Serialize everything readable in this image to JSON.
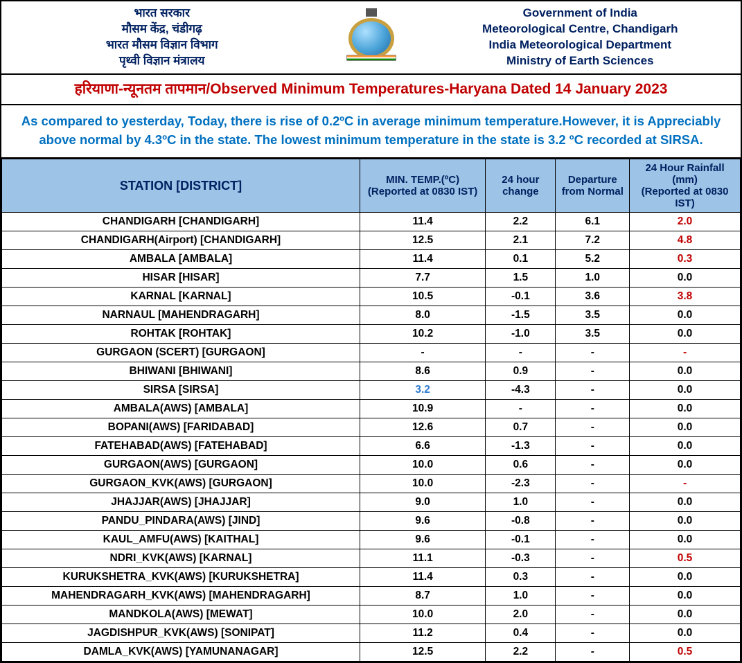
{
  "header": {
    "left": {
      "l1": "भारत सरकार",
      "l2": "मौसम केंद्र, चंडीगढ़",
      "l3": "भारत मौसम विज्ञान विभाग",
      "l4": "पृथ्वी विज्ञान मंत्रालय"
    },
    "right": {
      "l1": "Government of India",
      "l2": "Meteorological Centre, Chandigarh",
      "l3": "India Meteorological Department",
      "l4": "Ministry of Earth Sciences"
    }
  },
  "title": {
    "hi": "हरियाणा-न्यूनतम तापमान",
    "sep": "/",
    "en": "Observed Minimum Temperatures-Haryana Dated 14 January 2023"
  },
  "summary": "As compared to yesterday, Today, there is rise of 0.2ºC in average minimum temperature.However, it is Appreciably above normal by 4.3ºC in the state. The lowest minimum temperature in the state is 3.2 ºC recorded at SIRSA.",
  "columns": {
    "station": "STATION  [DISTRICT]",
    "mintemp_l1": "MIN. TEMP.(ºC)",
    "mintemp_l2": "(Reported at 0830 IST)",
    "change_l1": "24 hour",
    "change_l2": "change",
    "dep_l1": "Departure",
    "dep_l2": "from Normal",
    "rain_l1": "24 Hour Rainfall (mm)",
    "rain_l2": "(Reported at 0830 IST)"
  },
  "lowest_station_index": 9,
  "rows": [
    {
      "station": "CHANDIGARH  [CHANDIGARH]",
      "mintemp": "11.4",
      "change": "2.2",
      "dep": "6.1",
      "rain": "2.0",
      "rain_red": true
    },
    {
      "station": "CHANDIGARH(Airport)  [CHANDIGARH]",
      "mintemp": "12.5",
      "change": "2.1",
      "dep": "7.2",
      "rain": "4.8",
      "rain_red": true
    },
    {
      "station": "AMBALA  [AMBALA]",
      "mintemp": "11.4",
      "change": "0.1",
      "dep": "5.2",
      "rain": "0.3",
      "rain_red": true
    },
    {
      "station": "HISAR  [HISAR]",
      "mintemp": "7.7",
      "change": "1.5",
      "dep": "1.0",
      "rain": "0.0"
    },
    {
      "station": "KARNAL  [KARNAL]",
      "mintemp": "10.5",
      "change": "-0.1",
      "dep": "3.6",
      "rain": "3.8",
      "rain_red": true
    },
    {
      "station": "NARNAUL  [MAHENDRAGARH]",
      "mintemp": "8.0",
      "change": "-1.5",
      "dep": "3.5",
      "rain": "0.0"
    },
    {
      "station": "ROHTAK  [ROHTAK]",
      "mintemp": "10.2",
      "change": "-1.0",
      "dep": "3.5",
      "rain": "0.0"
    },
    {
      "station": "GURGAON (SCERT)  [GURGAON]",
      "mintemp": "-",
      "change": "-",
      "dep": "-",
      "rain": "-",
      "rain_red": true
    },
    {
      "station": "BHIWANI  [BHIWANI]",
      "mintemp": "8.6",
      "change": "0.9",
      "dep": "-",
      "rain": "0.0"
    },
    {
      "station": "SIRSA  [SIRSA]",
      "mintemp": "3.2",
      "change": "-4.3",
      "dep": "-",
      "rain": "0.0"
    },
    {
      "station": "AMBALA(AWS)  [AMBALA]",
      "mintemp": "10.9",
      "change": "-",
      "dep": "-",
      "rain": "0.0"
    },
    {
      "station": "BOPANI(AWS)  [FARIDABAD]",
      "mintemp": "12.6",
      "change": "0.7",
      "dep": "-",
      "rain": "0.0"
    },
    {
      "station": "FATEHABAD(AWS)  [FATEHABAD]",
      "mintemp": "6.6",
      "change": "-1.3",
      "dep": "-",
      "rain": "0.0"
    },
    {
      "station": "GURGAON(AWS)  [GURGAON]",
      "mintemp": "10.0",
      "change": "0.6",
      "dep": "-",
      "rain": "0.0"
    },
    {
      "station": "GURGAON_KVK(AWS)  [GURGAON]",
      "mintemp": "10.0",
      "change": "-2.3",
      "dep": "-",
      "rain": "-",
      "rain_red": true
    },
    {
      "station": "JHAJJAR(AWS)  [JHAJJAR]",
      "mintemp": "9.0",
      "change": "1.0",
      "dep": "-",
      "rain": "0.0"
    },
    {
      "station": "PANDU_PINDARA(AWS)  [JIND]",
      "mintemp": "9.6",
      "change": "-0.8",
      "dep": "-",
      "rain": "0.0"
    },
    {
      "station": "KAUL_AMFU(AWS)  [KAITHAL]",
      "mintemp": "9.6",
      "change": "-0.1",
      "dep": "-",
      "rain": "0.0"
    },
    {
      "station": "NDRI_KVK(AWS)  [KARNAL]",
      "mintemp": "11.1",
      "change": "-0.3",
      "dep": "-",
      "rain": "0.5",
      "rain_red": true
    },
    {
      "station": "KURUKSHETRA_KVK(AWS)  [KURUKSHETRA]",
      "mintemp": "11.4",
      "change": "0.3",
      "dep": "-",
      "rain": "0.0"
    },
    {
      "station": "MAHENDRAGARH_KVK(AWS)  [MAHENDRAGARH]",
      "mintemp": "8.7",
      "change": "1.0",
      "dep": "-",
      "rain": "0.0"
    },
    {
      "station": "MANDKOLA(AWS)  [MEWAT]",
      "mintemp": "10.0",
      "change": "2.0",
      "dep": "-",
      "rain": "0.0"
    },
    {
      "station": "JAGDISHPUR_KVK(AWS)  [SONIPAT]",
      "mintemp": "11.2",
      "change": "0.4",
      "dep": "-",
      "rain": "0.0"
    },
    {
      "station": "DAMLA_KVK(AWS)  [YAMUNANAGAR]",
      "mintemp": "12.5",
      "change": "2.2",
      "dep": "-",
      "rain": "0.5",
      "rain_red": true
    }
  ]
}
